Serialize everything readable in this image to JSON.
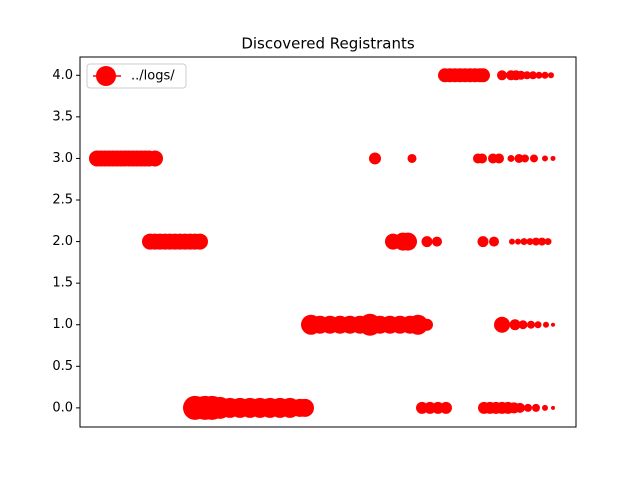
{
  "chart_data": {
    "type": "scatter",
    "title": "Discovered Registrants",
    "xlim": [
      0,
      496
    ],
    "ylim": [
      -0.23,
      4.22
    ],
    "yticks": [
      {
        "value": 0,
        "label": "0.0"
      },
      {
        "value": 0.5,
        "label": "0.5"
      },
      {
        "value": 1,
        "label": "1.0"
      },
      {
        "value": 1.5,
        "label": "1.5"
      },
      {
        "value": 2,
        "label": "2.0"
      },
      {
        "value": 2.5,
        "label": "2.5"
      },
      {
        "value": 3,
        "label": "3.0"
      },
      {
        "value": 3.5,
        "label": "3.5"
      },
      {
        "value": 4,
        "label": "4.0"
      }
    ],
    "legend": "upper left",
    "series": [
      {
        "name": "../logs/",
        "color": "#ff0000",
        "x": [
          365,
          370,
          375,
          380,
          385,
          390,
          395,
          400,
          403,
          422,
          431,
          436,
          441,
          447,
          453,
          459,
          465,
          471,
          17,
          21,
          25,
          29,
          33,
          37,
          41,
          45,
          49,
          53,
          57,
          61,
          65,
          69,
          75,
          295,
          332,
          398,
          402,
          413,
          419,
          431,
          439,
          445,
          454,
          465,
          473,
          70,
          75,
          80,
          85,
          90,
          95,
          100,
          105,
          110,
          115,
          120,
          313,
          323,
          328,
          347,
          357,
          403,
          414,
          432,
          438,
          444,
          450,
          456,
          462,
          468,
          231,
          240,
          250,
          260,
          270,
          280,
          290,
          300,
          310,
          320,
          330,
          338,
          347,
          422,
          435,
          443,
          451,
          458,
          466,
          473,
          115,
          125,
          132,
          140,
          150,
          160,
          170,
          180,
          190,
          200,
          210,
          220,
          225,
          342,
          350,
          358,
          366,
          404,
          410,
          416,
          422,
          428,
          434,
          440,
          448,
          456,
          465,
          473
        ],
        "values": [
          4,
          4,
          4,
          4,
          4,
          4,
          4,
          4,
          4,
          4,
          4,
          4,
          4,
          4,
          4,
          4,
          4,
          4,
          3,
          3,
          3,
          3,
          3,
          3,
          3,
          3,
          3,
          3,
          3,
          3,
          3,
          3,
          3,
          3,
          3,
          3,
          3,
          3,
          3,
          3,
          3,
          3,
          3,
          3,
          3,
          2,
          2,
          2,
          2,
          2,
          2,
          2,
          2,
          2,
          2,
          2,
          2,
          2,
          2,
          2,
          2,
          2,
          2,
          2,
          2,
          2,
          2,
          2,
          2,
          2,
          1,
          1,
          1,
          1,
          1,
          1,
          1,
          1,
          1,
          1,
          1,
          1,
          1,
          1,
          1,
          1,
          1,
          1,
          1,
          1,
          0,
          0,
          0,
          0,
          0,
          0,
          0,
          0,
          0,
          0,
          0,
          0,
          0,
          0,
          0,
          0,
          0,
          0,
          0,
          0,
          0,
          0,
          0,
          0,
          0,
          0,
          0,
          0
        ],
        "sizes": [
          7,
          7,
          7,
          7,
          7,
          7,
          7,
          7,
          7,
          5,
          5,
          5,
          4.5,
          4,
          4,
          3.5,
          3.5,
          3,
          8,
          8,
          8,
          8,
          8,
          8,
          8,
          8,
          8,
          8,
          8,
          8,
          8,
          8,
          8,
          6,
          4.5,
          5,
          5,
          5,
          5,
          3.5,
          4.5,
          4,
          4,
          3,
          2.5,
          8,
          8,
          8,
          8,
          8,
          8,
          8,
          8,
          8,
          8,
          8,
          8,
          9,
          9,
          5.5,
          5,
          5.5,
          5,
          3,
          3,
          3.5,
          3.5,
          4,
          4,
          3.5,
          10,
          9,
          9,
          9,
          9,
          9,
          11,
          9,
          9,
          9,
          9,
          10,
          6,
          8,
          5.5,
          4.5,
          4,
          3.5,
          3,
          2,
          12,
          12,
          12,
          11,
          10,
          10,
          10,
          10,
          10,
          10,
          10,
          9,
          9,
          6,
          6,
          6,
          6,
          6,
          6,
          6,
          6,
          6,
          5.5,
          5,
          4,
          4,
          3,
          2
        ]
      }
    ]
  }
}
